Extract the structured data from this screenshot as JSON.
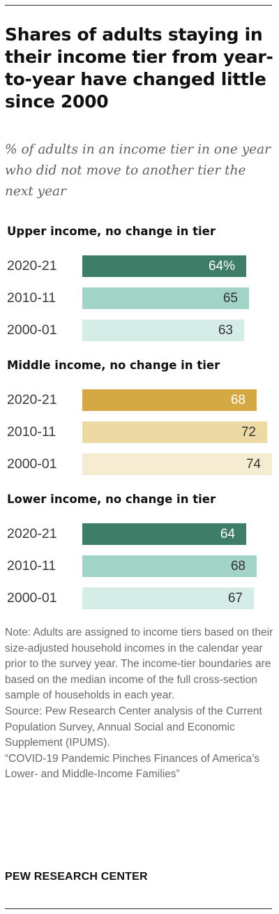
{
  "title": "Shares of adults staying in their income tier from year-to-year have changed little since 2000",
  "subtitle": "% of adults in an income tier in one year who did not move to another tier the next year",
  "chart_data": {
    "type": "bar",
    "orientation": "horizontal",
    "unit": "%",
    "categories": [
      "2020-21",
      "2010-11",
      "2000-01"
    ],
    "groups": [
      {
        "name": "Upper income, no change in tier",
        "values": [
          64,
          65,
          63
        ],
        "labels": [
          "64%",
          "65",
          "63"
        ],
        "colors": [
          "#3e7d68",
          "#a1d3c6",
          "#d5ece7"
        ],
        "label_colors": [
          "#ffffff",
          "#333333",
          "#333333"
        ]
      },
      {
        "name": "Middle income, no change in tier",
        "values": [
          68,
          72,
          74
        ],
        "labels": [
          "68",
          "72",
          "74"
        ],
        "colors": [
          "#d4a843",
          "#ecd9a3",
          "#f5ecd2"
        ],
        "label_colors": [
          "#ffffff",
          "#333333",
          "#333333"
        ]
      },
      {
        "name": "Lower income, no change in tier",
        "values": [
          64,
          68,
          67
        ],
        "labels": [
          "64",
          "68",
          "67"
        ],
        "colors": [
          "#3e7d68",
          "#a1d3c6",
          "#d5ece7"
        ],
        "label_colors": [
          "#ffffff",
          "#333333",
          "#333333"
        ]
      }
    ],
    "xlim": [
      0,
      74
    ]
  },
  "note": "Note: Adults are assigned to income tiers based on their size-adjusted household incomes in the calendar year prior to the survey year. The income-tier boundaries are based on the median income of the full cross-section sample of households in each year.",
  "source": "Source: Pew Research Center analysis of the Current Population Survey, Annual Social and Economic Supplement (IPUMS).",
  "report": "“COVID-19 Pandemic Pinches Finances of America’s Lower- and Middle-Income Families”",
  "brand": "PEW RESEARCH CENTER"
}
